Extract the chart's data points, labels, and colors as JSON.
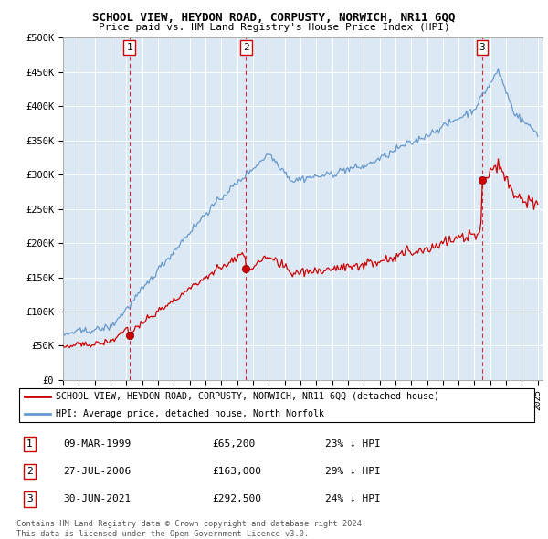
{
  "title": "SCHOOL VIEW, HEYDON ROAD, CORPUSTY, NORWICH, NR11 6QQ",
  "subtitle": "Price paid vs. HM Land Registry's House Price Index (HPI)",
  "ylim": [
    0,
    500000
  ],
  "yticks": [
    0,
    50000,
    100000,
    150000,
    200000,
    250000,
    300000,
    350000,
    400000,
    450000,
    500000
  ],
  "ytick_labels": [
    "£0",
    "£50K",
    "£100K",
    "£150K",
    "£200K",
    "£250K",
    "£300K",
    "£350K",
    "£400K",
    "£450K",
    "£500K"
  ],
  "sale_dates": [
    1999.19,
    2006.57,
    2021.49
  ],
  "sale_prices": [
    65200,
    163000,
    292500
  ],
  "sale_labels": [
    "1",
    "2",
    "3"
  ],
  "legend_property": "SCHOOL VIEW, HEYDON ROAD, CORPUSTY, NORWICH, NR11 6QQ (detached house)",
  "legend_hpi": "HPI: Average price, detached house, North Norfolk",
  "table_rows": [
    [
      "1",
      "09-MAR-1999",
      "£65,200",
      "23% ↓ HPI"
    ],
    [
      "2",
      "27-JUL-2006",
      "£163,000",
      "29% ↓ HPI"
    ],
    [
      "3",
      "30-JUN-2021",
      "£292,500",
      "24% ↓ HPI"
    ]
  ],
  "footer": "Contains HM Land Registry data © Crown copyright and database right 2024.\nThis data is licensed under the Open Government Licence v3.0.",
  "property_color": "#cc0000",
  "hpi_color": "#6699cc",
  "chart_bg_color": "#dce9f5",
  "background_color": "#ffffff",
  "grid_color": "#ffffff"
}
